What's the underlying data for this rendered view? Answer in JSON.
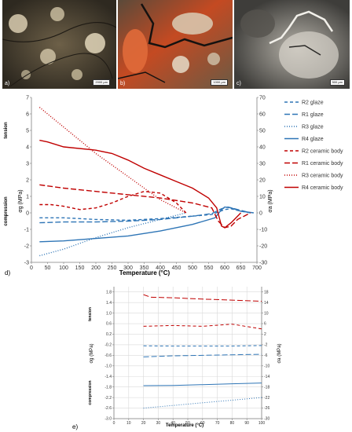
{
  "photos": [
    {
      "label": "a)",
      "scale": "2000 µm"
    },
    {
      "label": "b)",
      "scale": "1000 µm"
    },
    {
      "label": "c)",
      "scale": "500 µm"
    }
  ],
  "chart_d": {
    "panel_label": "d)",
    "xlabel": "Temperature (°C)",
    "ylabel_left": "σg (MPa)",
    "ylabel_right": "σa (MPa)",
    "side_top": "tension",
    "side_bottom": "compression",
    "legend": [
      {
        "name": "R2 glaze",
        "color": "#2e75b6",
        "dash": "4,3"
      },
      {
        "name": "R1 glaze",
        "color": "#2e75b6",
        "dash": "7,3"
      },
      {
        "name": "R3 glaze",
        "color": "#2e75b6",
        "dash": "1,2"
      },
      {
        "name": "R4 glaze",
        "color": "#2e75b6",
        "dash": ""
      },
      {
        "name": "R2 ceramic body",
        "color": "#c00000",
        "dash": "4,3"
      },
      {
        "name": "R1 ceramic body",
        "color": "#c00000",
        "dash": "7,3"
      },
      {
        "name": "R3 ceramic body",
        "color": "#c00000",
        "dash": "1,2"
      },
      {
        "name": "R4 ceramic body",
        "color": "#c00000",
        "dash": ""
      }
    ]
  },
  "chart_e": {
    "panel_label": "e)",
    "xlabel": "Temperature (°C)",
    "ylabel_left": "σg (MPa)",
    "ylabel_right": "σa (MPa)",
    "side_top": "tension",
    "side_bottom": "compression"
  },
  "chart_data": [
    {
      "type": "line",
      "xlabel": "Temperature (°C)",
      "ylabel": "σg (MPa)",
      "y2label": "σa (MPa)",
      "xlim": [
        0,
        700
      ],
      "ylim": [
        -3,
        7
      ],
      "y2lim": [
        -30,
        70
      ],
      "xticks": [
        0,
        50,
        100,
        150,
        200,
        250,
        300,
        350,
        400,
        450,
        500,
        550,
        600,
        650,
        700
      ],
      "yticks": [
        -3,
        -2,
        -1,
        0,
        1,
        2,
        3,
        4,
        5,
        6,
        7
      ],
      "y2ticks": [
        -30,
        -20,
        -10,
        0,
        10,
        20,
        30,
        40,
        50,
        60,
        70
      ],
      "grid": false,
      "legend_position": "right",
      "series": [
        {
          "name": "R2 glaze",
          "axis": "left",
          "color": "#2e75b6",
          "dash": "4,3",
          "x": [
            25,
            100,
            200,
            300,
            400,
            500,
            560,
            580,
            600,
            620,
            650,
            680
          ],
          "y": [
            -0.3,
            -0.3,
            -0.4,
            -0.45,
            -0.35,
            -0.2,
            -0.1,
            0.05,
            0.2,
            0.25,
            0.1,
            0.0
          ]
        },
        {
          "name": "R1 glaze",
          "axis": "left",
          "color": "#2e75b6",
          "dash": "7,3",
          "x": [
            25,
            100,
            200,
            300,
            400,
            500,
            560,
            590,
            610,
            640,
            680
          ],
          "y": [
            -0.6,
            -0.55,
            -0.55,
            -0.5,
            -0.4,
            -0.2,
            -0.05,
            0.25,
            0.35,
            0.2,
            0.0
          ]
        },
        {
          "name": "R3 glaze",
          "axis": "left",
          "color": "#2e75b6",
          "dash": "1,2",
          "x": [
            25,
            100,
            200,
            300,
            400,
            480
          ],
          "y": [
            -2.6,
            -2.2,
            -1.5,
            -0.9,
            -0.4,
            0.0
          ]
        },
        {
          "name": "R4 glaze",
          "axis": "left",
          "color": "#2e75b6",
          "dash": "",
          "x": [
            25,
            100,
            200,
            300,
            400,
            500,
            570,
            590,
            600,
            620,
            650,
            690
          ],
          "y": [
            -1.75,
            -1.7,
            -1.55,
            -1.4,
            -1.1,
            -0.7,
            -0.3,
            0.2,
            0.35,
            0.3,
            0.1,
            0.0
          ]
        },
        {
          "name": "R2 ceramic body",
          "axis": "right",
          "color": "#c00000",
          "dash": "4,3",
          "x": [
            25,
            60,
            100,
            150,
            200,
            250,
            300,
            350,
            400,
            450,
            480
          ],
          "y": [
            5,
            5,
            4,
            2,
            3,
            6,
            10,
            13,
            12,
            6,
            0
          ]
        },
        {
          "name": "R1 ceramic body",
          "axis": "right",
          "color": "#c00000",
          "dash": "7,3",
          "x": [
            25,
            100,
            200,
            300,
            400,
            500,
            560,
            580,
            600,
            620,
            640,
            680
          ],
          "y": [
            17,
            15,
            13,
            11,
            9,
            6,
            3,
            -5,
            -9,
            -8,
            -4,
            0
          ]
        },
        {
          "name": "R3 ceramic body",
          "axis": "right",
          "color": "#c00000",
          "dash": "1,2",
          "x": [
            25,
            100,
            200,
            300,
            400,
            480
          ],
          "y": [
            64,
            52,
            36,
            22,
            8,
            0
          ]
        },
        {
          "name": "R4 ceramic body",
          "axis": "right",
          "color": "#c00000",
          "dash": "",
          "x": [
            25,
            50,
            100,
            200,
            250,
            300,
            350,
            400,
            450,
            500,
            550,
            575,
            590,
            600,
            620,
            650
          ],
          "y": [
            44,
            43,
            40,
            38,
            36,
            32,
            27,
            23,
            19,
            15,
            9,
            3,
            -8,
            -9,
            -6,
            0
          ]
        }
      ]
    },
    {
      "type": "line",
      "xlabel": "Temperature (°C)",
      "ylabel": "σg (MPa)",
      "y2label": "σa (MPa)",
      "xlim": [
        0,
        100
      ],
      "ylim": [
        -3.0,
        2.0
      ],
      "y2lim": [
        -30,
        20
      ],
      "xticks": [
        0,
        10,
        20,
        30,
        40,
        50,
        60,
        70,
        80,
        90,
        100
      ],
      "yticks": [
        -3.0,
        -2.6,
        -2.2,
        -1.8,
        -1.4,
        -1.0,
        -0.6,
        -0.2,
        0.2,
        0.6,
        1.0,
        1.4,
        1.8
      ],
      "y2ticks": [
        -30,
        -26,
        -22,
        -18,
        -14,
        -10,
        -6,
        -2,
        2,
        6,
        10,
        14,
        18
      ],
      "grid": true,
      "series": [
        {
          "name": "R2 glaze",
          "axis": "left",
          "color": "#2e75b6",
          "dash": "4,3",
          "x": [
            20,
            40,
            60,
            80,
            100
          ],
          "y": [
            -0.24,
            -0.25,
            -0.25,
            -0.25,
            -0.23
          ]
        },
        {
          "name": "R1 glaze",
          "axis": "left",
          "color": "#2e75b6",
          "dash": "7,3",
          "x": [
            20,
            40,
            60,
            80,
            100
          ],
          "y": [
            -0.66,
            -0.62,
            -0.6,
            -0.58,
            -0.56
          ]
        },
        {
          "name": "R3 glaze",
          "axis": "left",
          "color": "#2e75b6",
          "dash": "1,2",
          "x": [
            20,
            40,
            60,
            80,
            100
          ],
          "y": [
            -2.6,
            -2.5,
            -2.4,
            -2.3,
            -2.2
          ]
        },
        {
          "name": "R4 glaze",
          "axis": "left",
          "color": "#2e75b6",
          "dash": "",
          "x": [
            20,
            40,
            60,
            80,
            100
          ],
          "y": [
            -1.75,
            -1.74,
            -1.71,
            -1.68,
            -1.65
          ]
        },
        {
          "name": "R2 ceramic body",
          "axis": "right",
          "color": "#c00000",
          "dash": "4,3",
          "x": [
            20,
            40,
            60,
            80,
            100
          ],
          "y": [
            5,
            5.3,
            5,
            5.8,
            4
          ]
        },
        {
          "name": "R1 ceramic body",
          "axis": "right",
          "color": "#c00000",
          "dash": "7,3",
          "x": [
            20,
            25,
            40,
            60,
            80,
            100
          ],
          "y": [
            17,
            16,
            15.8,
            15.3,
            14.9,
            14.5
          ]
        }
      ]
    }
  ]
}
